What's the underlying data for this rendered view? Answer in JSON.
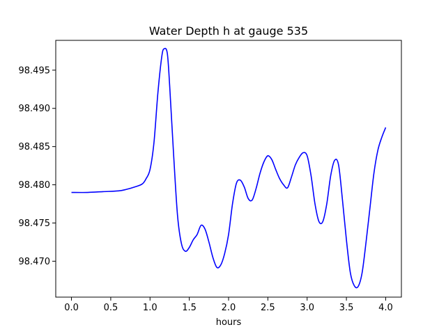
{
  "chart_data": {
    "type": "line",
    "title": "Water Depth h at gauge 535",
    "xlabel": "hours",
    "ylabel": "",
    "xlim": [
      -0.2,
      4.2
    ],
    "ylim": [
      98.4653,
      98.4989
    ],
    "x_ticks": [
      0.0,
      0.5,
      1.0,
      1.5,
      2.0,
      2.5,
      3.0,
      3.5,
      4.0
    ],
    "x_tick_labels": [
      "0.0",
      "0.5",
      "1.0",
      "1.5",
      "2.0",
      "2.5",
      "3.0",
      "3.5",
      "4.0"
    ],
    "y_ticks": [
      98.47,
      98.475,
      98.48,
      98.485,
      98.49,
      98.495
    ],
    "y_tick_labels": [
      "98.470",
      "98.475",
      "98.480",
      "98.485",
      "98.490",
      "98.495"
    ],
    "grid": false,
    "series": [
      {
        "color": "#0000ff",
        "x": [
          0.0,
          0.2,
          0.4,
          0.6,
          0.7,
          0.8,
          0.9,
          0.95,
          1.0,
          1.05,
          1.1,
          1.15,
          1.18,
          1.22,
          1.25,
          1.3,
          1.35,
          1.4,
          1.45,
          1.5,
          1.55,
          1.6,
          1.65,
          1.7,
          1.75,
          1.8,
          1.85,
          1.9,
          1.95,
          2.0,
          2.05,
          2.1,
          2.15,
          2.2,
          2.25,
          2.3,
          2.35,
          2.4,
          2.45,
          2.5,
          2.55,
          2.6,
          2.65,
          2.7,
          2.75,
          2.8,
          2.85,
          2.9,
          2.95,
          3.0,
          3.05,
          3.1,
          3.15,
          3.2,
          3.25,
          3.3,
          3.35,
          3.4,
          3.45,
          3.5,
          3.55,
          3.6,
          3.65,
          3.7,
          3.75,
          3.8,
          3.85,
          3.9,
          3.95,
          4.0
        ],
        "y": [
          98.479,
          98.479,
          98.4791,
          98.4792,
          98.4794,
          98.4797,
          98.4801,
          98.4808,
          98.482,
          98.4855,
          98.492,
          98.4968,
          98.4978,
          98.4972,
          98.493,
          98.484,
          98.476,
          98.4723,
          98.4713,
          98.4718,
          98.4728,
          98.4735,
          98.4747,
          98.4742,
          98.4725,
          98.4705,
          98.4692,
          98.4695,
          98.471,
          98.4735,
          98.4775,
          98.4802,
          98.4806,
          98.4797,
          98.4782,
          98.478,
          98.4795,
          98.4815,
          98.483,
          98.4838,
          98.4833,
          98.482,
          98.4808,
          98.48,
          98.4796,
          98.481,
          98.4826,
          98.4836,
          98.4842,
          98.4838,
          98.4812,
          98.4775,
          98.4752,
          98.4752,
          98.4775,
          98.4812,
          98.4832,
          98.4826,
          98.478,
          98.4728,
          98.4685,
          98.4668,
          98.4667,
          98.4685,
          98.4725,
          98.477,
          98.4815,
          98.4845,
          98.4862,
          98.4875
        ]
      }
    ]
  }
}
